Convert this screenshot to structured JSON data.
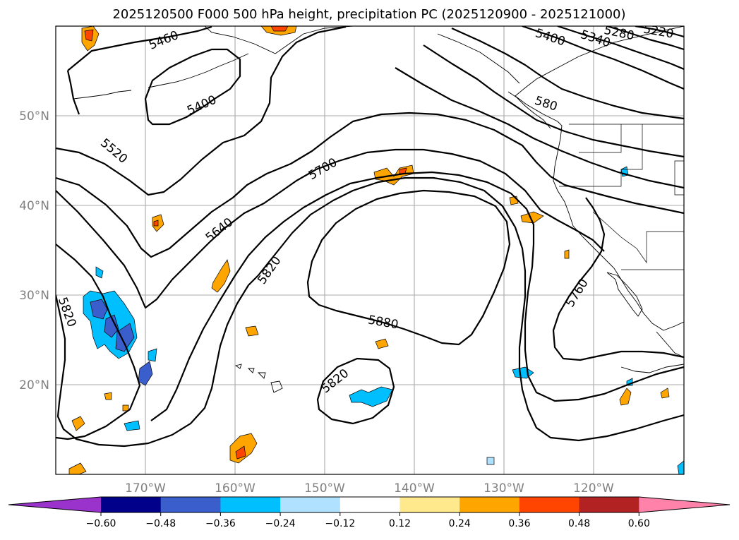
{
  "chart_data": {
    "type": "map",
    "title": "2025120500 F000 500 hPa height, precipitation PC (2025120900 - 2025121000)",
    "lon_ticks": [
      "170°W",
      "160°W",
      "150°W",
      "140°W",
      "130°W",
      "120°W"
    ],
    "lat_ticks": [
      "20°N",
      "30°N",
      "40°N",
      "50°N"
    ],
    "extent": {
      "lon": [
        -180,
        -110
      ],
      "lat": [
        10,
        60
      ]
    },
    "contour_labels": [
      {
        "value": "5460",
        "lon": -168,
        "lat": 58.5
      },
      {
        "value": "5400",
        "lon": -160,
        "lat": 51
      },
      {
        "value": "5520",
        "lon": -176,
        "lat": 48.5
      },
      {
        "value": "5700",
        "lon": -148,
        "lat": 44.5
      },
      {
        "value": "5640",
        "lon": -161,
        "lat": 36.5
      },
      {
        "value": "5820",
        "lon": -154,
        "lat": 32.5
      },
      {
        "value": "5820",
        "lon": -179,
        "lat": 27
      },
      {
        "value": "5880",
        "lon": -143.5,
        "lat": 26.5
      },
      {
        "value": "5820",
        "lon": -149.5,
        "lat": 20.5
      },
      {
        "value": "5760",
        "lon": -123.8,
        "lat": 29.8
      },
      {
        "value": "580",
        "lon": -123.5,
        "lat": 51.5
      },
      {
        "value": "5400",
        "lon": -133,
        "lat": 59
      },
      {
        "value": "5340",
        "lon": -128,
        "lat": 58.8
      },
      {
        "value": "5280",
        "lon": -123.5,
        "lat": 59.4
      },
      {
        "value": "5220",
        "lon": -118.5,
        "lat": 59.4
      }
    ],
    "colorbar": {
      "levels": [
        -0.6,
        -0.48,
        -0.36,
        -0.24,
        -0.12,
        0.12,
        0.24,
        0.36,
        0.48,
        0.6
      ],
      "tick_labels": [
        "−0.60",
        "−0.48",
        "−0.36",
        "−0.24",
        "−0.12",
        "0.12",
        "0.24",
        "0.36",
        "0.48",
        "0.60"
      ],
      "colors": [
        "#9933cc",
        "#00008b",
        "#3a5fcd",
        "#00bfff",
        "#b0e2ff",
        "#ffffff",
        "#ffe98c",
        "#ffa500",
        "#ff4500",
        "#b22222",
        "#ff82ab"
      ],
      "extend": "both"
    }
  }
}
